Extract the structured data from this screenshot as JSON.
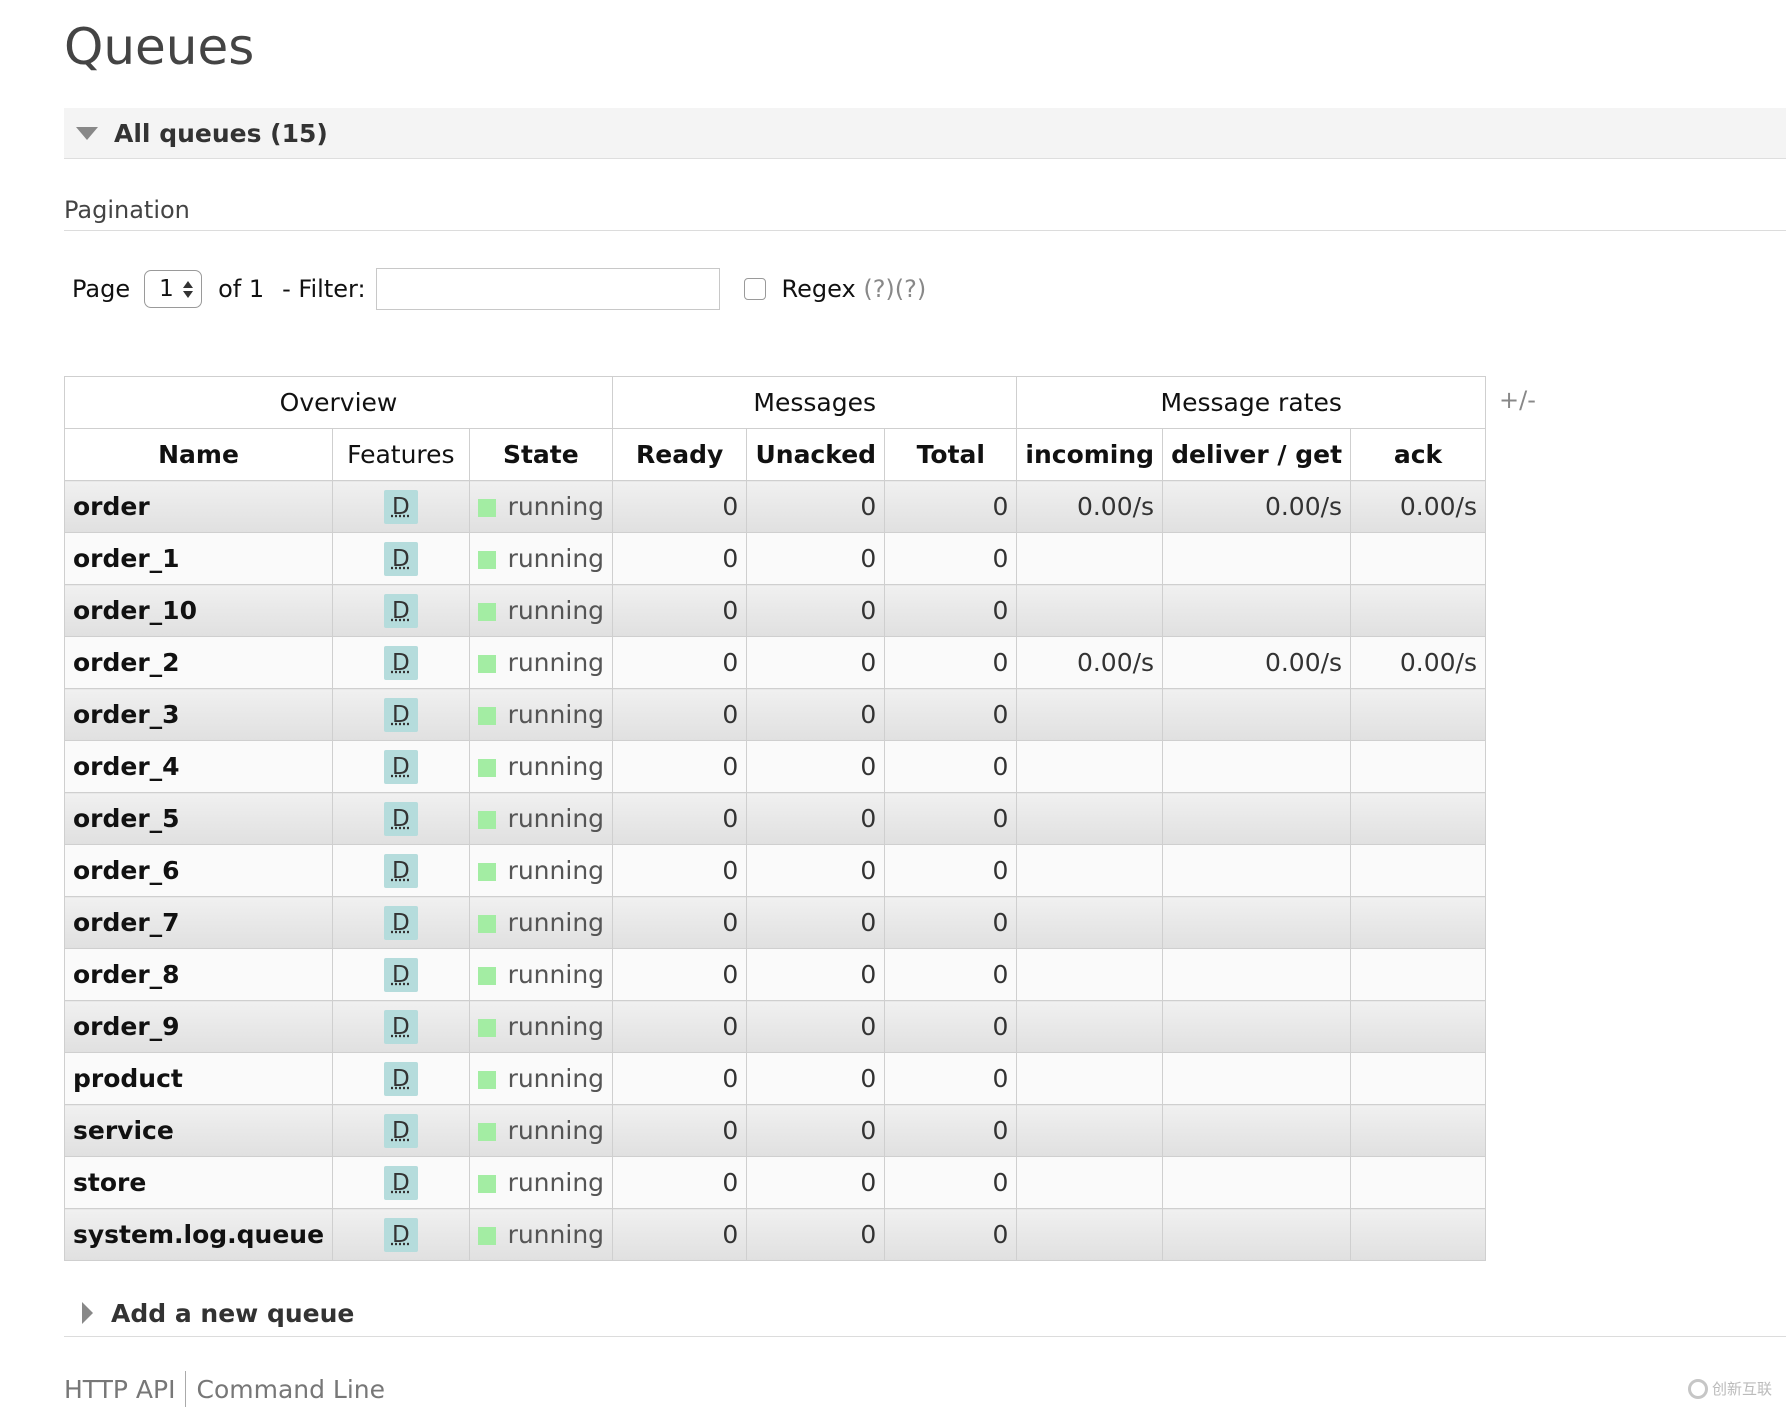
{
  "page": {
    "title": "Queues"
  },
  "all_queues": {
    "title": "All queues (15)"
  },
  "pagination": {
    "heading": "Pagination",
    "page_label": "Page",
    "page_value": "1",
    "of_label": "of 1",
    "filter_label": "- Filter:",
    "filter_value": "",
    "regex_label": "Regex",
    "help_1": "(?)",
    "help_2": "(?)"
  },
  "table": {
    "groups": [
      "Overview",
      "Messages",
      "Message rates"
    ],
    "columns": [
      "Name",
      "Features",
      "State",
      "Ready",
      "Unacked",
      "Total",
      "incoming",
      "deliver / get",
      "ack"
    ],
    "toggle_label": "+/-",
    "rows": [
      {
        "name": "order",
        "feature": "D",
        "state": "running",
        "ready": "0",
        "unacked": "0",
        "total": "0",
        "incoming": "0.00/s",
        "deliver_get": "0.00/s",
        "ack": "0.00/s"
      },
      {
        "name": "order_1",
        "feature": "D",
        "state": "running",
        "ready": "0",
        "unacked": "0",
        "total": "0",
        "incoming": "",
        "deliver_get": "",
        "ack": ""
      },
      {
        "name": "order_10",
        "feature": "D",
        "state": "running",
        "ready": "0",
        "unacked": "0",
        "total": "0",
        "incoming": "",
        "deliver_get": "",
        "ack": ""
      },
      {
        "name": "order_2",
        "feature": "D",
        "state": "running",
        "ready": "0",
        "unacked": "0",
        "total": "0",
        "incoming": "0.00/s",
        "deliver_get": "0.00/s",
        "ack": "0.00/s"
      },
      {
        "name": "order_3",
        "feature": "D",
        "state": "running",
        "ready": "0",
        "unacked": "0",
        "total": "0",
        "incoming": "",
        "deliver_get": "",
        "ack": ""
      },
      {
        "name": "order_4",
        "feature": "D",
        "state": "running",
        "ready": "0",
        "unacked": "0",
        "total": "0",
        "incoming": "",
        "deliver_get": "",
        "ack": ""
      },
      {
        "name": "order_5",
        "feature": "D",
        "state": "running",
        "ready": "0",
        "unacked": "0",
        "total": "0",
        "incoming": "",
        "deliver_get": "",
        "ack": ""
      },
      {
        "name": "order_6",
        "feature": "D",
        "state": "running",
        "ready": "0",
        "unacked": "0",
        "total": "0",
        "incoming": "",
        "deliver_get": "",
        "ack": ""
      },
      {
        "name": "order_7",
        "feature": "D",
        "state": "running",
        "ready": "0",
        "unacked": "0",
        "total": "0",
        "incoming": "",
        "deliver_get": "",
        "ack": ""
      },
      {
        "name": "order_8",
        "feature": "D",
        "state": "running",
        "ready": "0",
        "unacked": "0",
        "total": "0",
        "incoming": "",
        "deliver_get": "",
        "ack": ""
      },
      {
        "name": "order_9",
        "feature": "D",
        "state": "running",
        "ready": "0",
        "unacked": "0",
        "total": "0",
        "incoming": "",
        "deliver_get": "",
        "ack": ""
      },
      {
        "name": "product",
        "feature": "D",
        "state": "running",
        "ready": "0",
        "unacked": "0",
        "total": "0",
        "incoming": "",
        "deliver_get": "",
        "ack": ""
      },
      {
        "name": "service",
        "feature": "D",
        "state": "running",
        "ready": "0",
        "unacked": "0",
        "total": "0",
        "incoming": "",
        "deliver_get": "",
        "ack": ""
      },
      {
        "name": "store",
        "feature": "D",
        "state": "running",
        "ready": "0",
        "unacked": "0",
        "total": "0",
        "incoming": "",
        "deliver_get": "",
        "ack": ""
      },
      {
        "name": "system.log.queue",
        "feature": "D",
        "state": "running",
        "ready": "0",
        "unacked": "0",
        "total": "0",
        "incoming": "",
        "deliver_get": "",
        "ack": ""
      }
    ]
  },
  "add_queue": {
    "title": "Add a new queue"
  },
  "footer": {
    "http_api": "HTTP API",
    "command_line": "Command Line"
  },
  "watermark": {
    "text": "创新互联"
  },
  "colors": {
    "state_running": "#a3eda3",
    "feature_badge": "#b5dcdc"
  },
  "icons": {
    "collapse": "triangle-down-icon",
    "expand": "triangle-right-icon",
    "logo": "watermark-logo-icon"
  }
}
